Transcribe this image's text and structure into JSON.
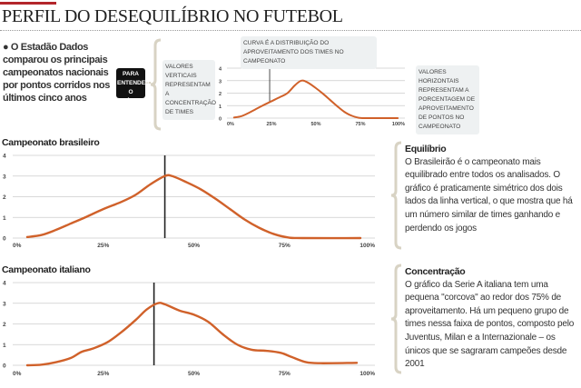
{
  "header": {
    "title": "PERFIL DO DESEQUILÍBRIO NO FUTEBOL"
  },
  "intro": "● O Estadão Dados comparou os principais campeonatos nacionais por pontos corridos nos últimos cinco anos",
  "guide": {
    "badge": "PARA ENTENDER O GRÁFICO",
    "vertical_note": "VALORES VERTICAIS REPRESENTAM A CONCENTRAÇÃO DE TIMES",
    "curve_note": "CURVA É A DISTRIBUIÇÃO DO APROVEITAMENTO DOS TIMES NO CAMPEONATO",
    "horizontal_note": "VALORES HORIZONTAIS REPRESENTAM A PORCENTAGEM DE APROVEITAMENTO DE PONTOS NO CAMPEONATO"
  },
  "colors": {
    "curve": "#d0612a",
    "accent": "#b3262b",
    "grid": "#cccccc",
    "bracket": "#d8d3c4"
  },
  "chart_data": [
    {
      "type": "line",
      "title": "",
      "ylim": [
        0,
        4
      ],
      "xlim": [
        0,
        100
      ],
      "yticks": [
        "0",
        "1",
        "2",
        "3",
        "4"
      ],
      "xticks": [
        "0%",
        "25%",
        "50%",
        "75%",
        "100%"
      ],
      "reference_line_x": 24,
      "x": [
        4,
        8,
        12,
        16,
        20,
        25,
        30,
        34,
        38,
        41,
        43,
        46,
        50,
        54,
        58,
        62,
        66,
        70,
        74,
        78,
        82,
        96
      ],
      "y": [
        0.05,
        0.15,
        0.4,
        0.7,
        1.0,
        1.35,
        1.7,
        2.0,
        2.6,
        2.95,
        3.0,
        2.8,
        2.4,
        1.95,
        1.45,
        0.95,
        0.5,
        0.2,
        0.03,
        0,
        0,
        0
      ]
    },
    {
      "type": "line",
      "title": "Campeonato brasileiro",
      "ylim": [
        0,
        4
      ],
      "xlim": [
        0,
        100
      ],
      "yticks": [
        "0",
        "1",
        "2",
        "3",
        "4"
      ],
      "xticks": [
        "0%",
        "25%",
        "50%",
        "75%",
        "100%"
      ],
      "reference_line_x": 42,
      "x": [
        4,
        8,
        12,
        16,
        20,
        25,
        30,
        34,
        38,
        42,
        44,
        48,
        52,
        56,
        60,
        64,
        68,
        72,
        76,
        80,
        96
      ],
      "y": [
        0.05,
        0.15,
        0.4,
        0.7,
        1.0,
        1.4,
        1.75,
        2.1,
        2.6,
        3.0,
        3.0,
        2.7,
        2.35,
        1.9,
        1.4,
        0.9,
        0.5,
        0.2,
        0.03,
        0,
        0
      ]
    },
    {
      "type": "line",
      "title": "Campeonato italiano",
      "ylim": [
        0,
        4
      ],
      "xlim": [
        0,
        100
      ],
      "yticks": [
        "0",
        "1",
        "2",
        "3",
        "4"
      ],
      "xticks": [
        "0%",
        "25%",
        "50%",
        "75%",
        "100%"
      ],
      "reference_line_x": 39,
      "x": [
        4,
        8,
        12,
        16,
        19,
        22,
        26,
        30,
        34,
        37,
        40,
        42,
        46,
        50,
        54,
        58,
        62,
        66,
        70,
        74,
        77,
        81,
        85,
        95
      ],
      "y": [
        0,
        0.03,
        0.15,
        0.35,
        0.65,
        0.8,
        1.1,
        1.6,
        2.2,
        2.7,
        3.0,
        2.95,
        2.65,
        2.45,
        2.1,
        1.5,
        1.0,
        0.75,
        0.7,
        0.6,
        0.4,
        0.15,
        0.1,
        0.12
      ]
    }
  ],
  "notes": [
    {
      "title": "Equilíbrio",
      "text": "O Brasileirão é o campeonato mais equilibrado entre todos os analisados. O gráfico é praticamente simétrico dos dois lados da linha vertical, o que mostra que há um número similar de times ganhando e perdendo os jogos"
    },
    {
      "title": "Concentração",
      "text": "O gráfico da Serie A italiana tem uma pequena \"corcova\" ao redor dos 75% de aproveitamento. Há um pequeno grupo de times nessa faixa de pontos, composto pelo Juventus, Milan e a Internazionale – os únicos que se sagraram campeões desde 2001"
    }
  ]
}
